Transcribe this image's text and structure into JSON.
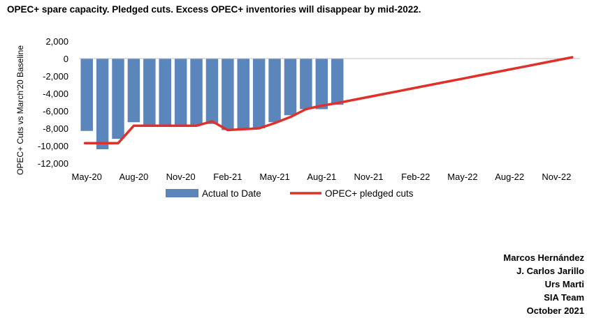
{
  "title": "OPEC+ spare capacity. Pledged cuts. Excess OPEC+ inventories will disappear by mid-2022.",
  "credits": [
    "Marcos Hernández",
    "J. Carlos Jarillo",
    "Urs Marti",
    "SIA Team",
    "October 2021"
  ],
  "chart_data": {
    "type": "bar",
    "ylabel": "OPEC+ Cuts vs March'20 Baseline",
    "ylim": [
      -12000,
      2000
    ],
    "yticks": [
      2000,
      0,
      -2000,
      -4000,
      -6000,
      -8000,
      -10000,
      -12000
    ],
    "ytick_labels": [
      "2,000",
      "0",
      "-2,000",
      "-4,000",
      "-6,000",
      "-8,000",
      "-10,000",
      "-12,000"
    ],
    "categories": [
      "May-20",
      "Jun-20",
      "Jul-20",
      "Aug-20",
      "Sep-20",
      "Oct-20",
      "Nov-20",
      "Dec-20",
      "Jan-21",
      "Feb-21",
      "Mar-21",
      "Apr-21",
      "May-21",
      "Jun-21",
      "Jul-21",
      "Aug-21",
      "Sep-21",
      "Oct-21",
      "Nov-21",
      "Dec-21",
      "Jan-22",
      "Feb-22",
      "Mar-22",
      "Apr-22",
      "May-22",
      "Jun-22",
      "Jul-22",
      "Aug-22",
      "Sep-22",
      "Oct-22",
      "Nov-22",
      "Dec-22"
    ],
    "xtick_labels": [
      "May-20",
      "Aug-20",
      "Nov-20",
      "Feb-21",
      "May-21",
      "Aug-21",
      "Nov-21",
      "Feb-22",
      "May-22",
      "Aug-22",
      "Nov-22"
    ],
    "legend": [
      "Actual to Date",
      "OPEC+ pledged cuts"
    ],
    "legend_position": "bottom",
    "colors": {
      "bars": "#5b86bc",
      "line": "#e0302a"
    },
    "series": [
      {
        "name": "Actual to Date",
        "type": "bar",
        "values": [
          -8300,
          -10400,
          -9200,
          -7300,
          -7600,
          -7600,
          -7600,
          -7600,
          -7500,
          -8200,
          -8000,
          -8000,
          -7300,
          -6500,
          -5800,
          -5800,
          -5300,
          null,
          null,
          null,
          null,
          null,
          null,
          null,
          null,
          null,
          null,
          null,
          null,
          null,
          null,
          null
        ]
      },
      {
        "name": "OPEC+ pledged cuts",
        "type": "line",
        "values": [
          -9700,
          -9700,
          -9700,
          -7700,
          -7700,
          -7700,
          -7700,
          -7700,
          -7200,
          -8200,
          -8100,
          -8000,
          -7400,
          -6700,
          -5800,
          -5400,
          -5100,
          -4750,
          -4400,
          -4050,
          -3700,
          -3350,
          -3000,
          -2650,
          -2300,
          -1950,
          -1600,
          -1250,
          -900,
          -550,
          -200,
          150
        ]
      }
    ]
  }
}
